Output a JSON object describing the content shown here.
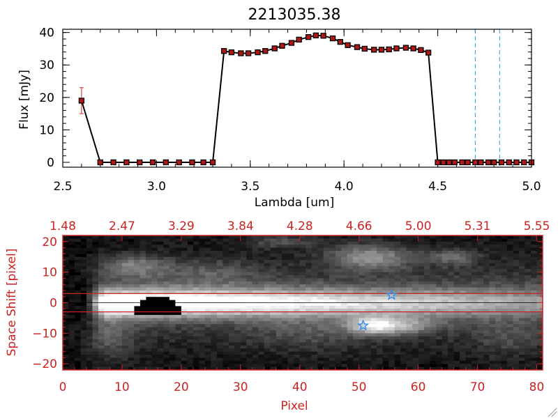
{
  "colors": {
    "background": "#ffffff",
    "axis_black": "#000000",
    "axis_red": "#cc2222",
    "marker_fill": "#b01818",
    "marker_stroke": "#000000",
    "error_bar": "#cc2222",
    "dashed_blue": "#3399dd",
    "star_blue": "#3a8ee6",
    "image_bg": "#000000"
  },
  "chart_data": [
    {
      "type": "line",
      "title": "2213035.38",
      "xlabel": "Lambda [um]",
      "ylabel": "Flux [mJy]",
      "xlim": [
        2.5,
        5.0
      ],
      "ylim": [
        -1.5,
        41
      ],
      "xticks": [
        2.5,
        3.0,
        3.5,
        4.0,
        4.5,
        5.0
      ],
      "xtick_labels": [
        "2.5",
        "3.0",
        "3.5",
        "4.0",
        "4.5",
        "5.0"
      ],
      "yticks": [
        0,
        10,
        20,
        30,
        40
      ],
      "ytick_labels": [
        "0",
        "10",
        "20",
        "30",
        "40"
      ],
      "series": [
        {
          "name": "flux",
          "x": [
            2.6,
            2.7,
            2.77,
            2.84,
            2.91,
            2.98,
            3.05,
            3.12,
            3.19,
            3.25,
            3.3,
            3.36,
            3.4,
            3.45,
            3.49,
            3.54,
            3.58,
            3.63,
            3.67,
            3.72,
            3.76,
            3.81,
            3.85,
            3.89,
            3.94,
            3.98,
            4.02,
            4.07,
            4.11,
            4.16,
            4.2,
            4.24,
            4.28,
            4.33,
            4.37,
            4.41,
            4.45,
            4.5,
            4.53,
            4.56,
            4.59,
            4.63,
            4.66,
            4.7,
            4.73,
            4.77,
            4.8,
            4.84,
            4.88,
            4.92,
            4.96,
            5.0
          ],
          "y": [
            19,
            0,
            0,
            0,
            0,
            0,
            0,
            0,
            0,
            0,
            0,
            34.3,
            33.9,
            33.6,
            33.6,
            33.9,
            34.3,
            35.1,
            35.9,
            36.8,
            37.8,
            38.6,
            39.1,
            39,
            38.2,
            37.1,
            36.1,
            35.5,
            35,
            34.7,
            34.7,
            34.8,
            35.1,
            35.3,
            35.1,
            34.6,
            33.8,
            0,
            0,
            0,
            0,
            0,
            0,
            0,
            0,
            0,
            0,
            0,
            0,
            0,
            0,
            0
          ],
          "errors": [
            {
              "x": 2.6,
              "y": 19,
              "err": 4
            }
          ]
        }
      ],
      "vlines_dashed": [
        4.7,
        4.83
      ]
    },
    {
      "type": "heatmap",
      "xlabel": "Pixel",
      "ylabel": "Space Shift [pixel]",
      "xlim": [
        0,
        81
      ],
      "ylim": [
        -22,
        22
      ],
      "xticks": [
        0,
        10,
        20,
        30,
        40,
        50,
        60,
        70,
        80
      ],
      "xtick_labels": [
        "0",
        "10",
        "20",
        "30",
        "40",
        "50",
        "60",
        "70",
        "80"
      ],
      "yticks": [
        -20,
        -10,
        0,
        10,
        20
      ],
      "ytick_labels": [
        "−20",
        "−10",
        "0",
        "10",
        "20"
      ],
      "top_ticks": [
        0,
        10,
        20,
        30,
        40,
        50,
        60,
        70,
        80
      ],
      "top_tick_labels": [
        "1.48",
        "2.47",
        "3.29",
        "3.84",
        "4.28",
        "4.66",
        "5.00",
        "5.31",
        "5.55"
      ],
      "hlines_red": [
        3,
        -3
      ],
      "hline_black": 0,
      "stars": [
        {
          "x": 55.5,
          "y": 2.5
        },
        {
          "x": 50.7,
          "y": -7.5
        }
      ],
      "trace": {
        "x_start": 6,
        "x_end": 81,
        "peak_x": 9,
        "center_y": 0,
        "width": 3.2
      },
      "blobs": [
        {
          "x": 12,
          "y": 12,
          "sx": 4,
          "sy": 2.5,
          "amp": 0.35
        },
        {
          "x": 52,
          "y": 15,
          "sx": 5,
          "sy": 3,
          "amp": 0.45
        },
        {
          "x": 52.5,
          "y": -7.5,
          "sx": 3,
          "sy": 2,
          "amp": 0.6
        },
        {
          "x": 58,
          "y": -7.5,
          "sx": 4,
          "sy": 2,
          "amp": 0.35
        },
        {
          "x": 37,
          "y": 20,
          "sx": 4,
          "sy": 1.5,
          "amp": 0.25
        },
        {
          "x": 66,
          "y": 15,
          "sx": 3,
          "sy": 2,
          "amp": 0.3
        },
        {
          "x": 25,
          "y": 10,
          "sx": 6,
          "sy": 3,
          "amp": 0.18
        },
        {
          "x": 42,
          "y": -10,
          "sx": 7,
          "sy": 4,
          "amp": 0.15
        },
        {
          "x": 8,
          "y": -12,
          "sx": 3,
          "sy": 5,
          "amp": 0.2
        },
        {
          "x": 75,
          "y": -12,
          "sx": 4,
          "sy": 4,
          "amp": 0.15
        }
      ],
      "dark_patch": {
        "x_from": 12,
        "x_to": 20,
        "y_from": -4,
        "y_to": 2
      }
    }
  ]
}
